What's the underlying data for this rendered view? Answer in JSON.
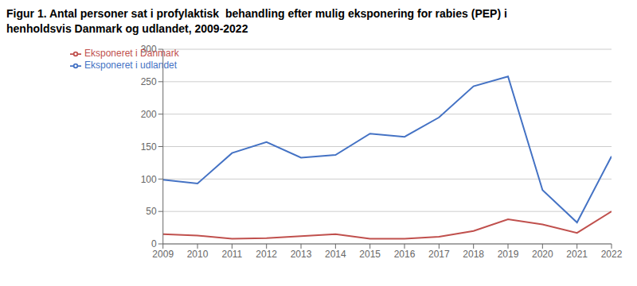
{
  "chart_data": {
    "type": "line",
    "title": "Figur 1. Antal personer sat i profylaktisk  behandling efter mulig eksponering for rabies (PEP) i\nhenholdsvis Danmark og udlandet, 2009-2022",
    "x": [
      2009,
      2010,
      2011,
      2012,
      2013,
      2014,
      2015,
      2016,
      2017,
      2018,
      2019,
      2020,
      2021,
      2022
    ],
    "series": [
      {
        "name": "Eksponeret i udlandet",
        "color": "#4472C4",
        "values": [
          99,
          93,
          140,
          157,
          133,
          137,
          170,
          165,
          195,
          243,
          258,
          83,
          33,
          135
        ]
      },
      {
        "name": "Eksponeret i Danmark",
        "color": "#C0504D",
        "values": [
          15,
          13,
          8,
          9,
          12,
          15,
          8,
          8,
          11,
          20,
          38,
          30,
          17,
          50
        ]
      }
    ],
    "xlim": [
      2009,
      2022
    ],
    "xticks": [
      2009,
      2010,
      2011,
      2012,
      2013,
      2014,
      2015,
      2016,
      2017,
      2018,
      2019,
      2020,
      2021,
      2022
    ],
    "ylim": [
      0,
      300
    ],
    "yticks": [
      0,
      50,
      100,
      150,
      200,
      250,
      300
    ],
    "grid": "y",
    "legend": "upper left"
  }
}
